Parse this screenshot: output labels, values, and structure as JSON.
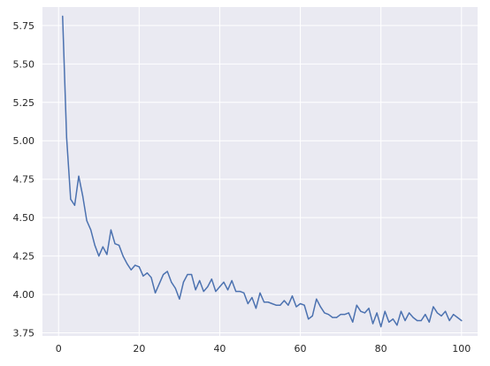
{
  "chart_data": {
    "type": "line",
    "title": "",
    "xlabel": "",
    "ylabel": "",
    "xlim": [
      -4,
      104
    ],
    "ylim": [
      3.73,
      5.87
    ],
    "xticks": [
      0,
      20,
      40,
      60,
      80,
      100
    ],
    "yticks": [
      3.75,
      4.0,
      4.25,
      4.5,
      4.75,
      5.0,
      5.25,
      5.5,
      5.75
    ],
    "ytick_labels": [
      "3.75",
      "4.00",
      "4.25",
      "4.50",
      "4.75",
      "5.00",
      "5.25",
      "5.50",
      "5.75"
    ],
    "grid": true,
    "background_color": "#eaeaf2",
    "grid_color": "#ffffff",
    "line_color": "#4c72b0",
    "series": [
      {
        "x": [
          1,
          2,
          3,
          4,
          5,
          6,
          7,
          8,
          9,
          10,
          11,
          12,
          13,
          14,
          15,
          16,
          17,
          18,
          19,
          20,
          21,
          22,
          23,
          24,
          25,
          26,
          27,
          28,
          29,
          30,
          31,
          32,
          33,
          34,
          35,
          36,
          37,
          38,
          39,
          40,
          41,
          42,
          43,
          44,
          45,
          46,
          47,
          48,
          49,
          50,
          51,
          52,
          53,
          54,
          55,
          56,
          57,
          58,
          59,
          60,
          61,
          62,
          63,
          64,
          65,
          66,
          67,
          68,
          69,
          70,
          71,
          72,
          73,
          74,
          75,
          76,
          77,
          78,
          79,
          80,
          81,
          82,
          83,
          84,
          85,
          86,
          87,
          88,
          89,
          90,
          91,
          92,
          93,
          94,
          95,
          96,
          97,
          98,
          99,
          100
        ],
        "y": [
          5.81,
          5.02,
          4.62,
          4.58,
          4.77,
          4.64,
          4.48,
          4.42,
          4.32,
          4.25,
          4.31,
          4.26,
          4.42,
          4.33,
          4.32,
          4.25,
          4.2,
          4.16,
          4.19,
          4.18,
          4.12,
          4.14,
          4.11,
          4.01,
          4.07,
          4.13,
          4.15,
          4.08,
          4.04,
          3.97,
          4.08,
          4.13,
          4.13,
          4.03,
          4.09,
          4.02,
          4.05,
          4.1,
          4.02,
          4.05,
          4.08,
          4.03,
          4.09,
          4.02,
          4.02,
          4.01,
          3.94,
          3.98,
          3.91,
          4.01,
          3.95,
          3.95,
          3.94,
          3.93,
          3.93,
          3.96,
          3.93,
          3.99,
          3.92,
          3.94,
          3.93,
          3.84,
          3.86,
          3.97,
          3.92,
          3.88,
          3.87,
          3.85,
          3.85,
          3.87,
          3.87,
          3.88,
          3.82,
          3.93,
          3.89,
          3.88,
          3.91,
          3.81,
          3.88,
          3.79,
          3.89,
          3.82,
          3.84,
          3.8,
          3.89,
          3.83,
          3.88,
          3.85,
          3.83,
          3.83,
          3.87,
          3.82,
          3.92,
          3.88,
          3.86,
          3.89,
          3.83,
          3.87,
          3.85,
          3.83
        ]
      }
    ]
  }
}
